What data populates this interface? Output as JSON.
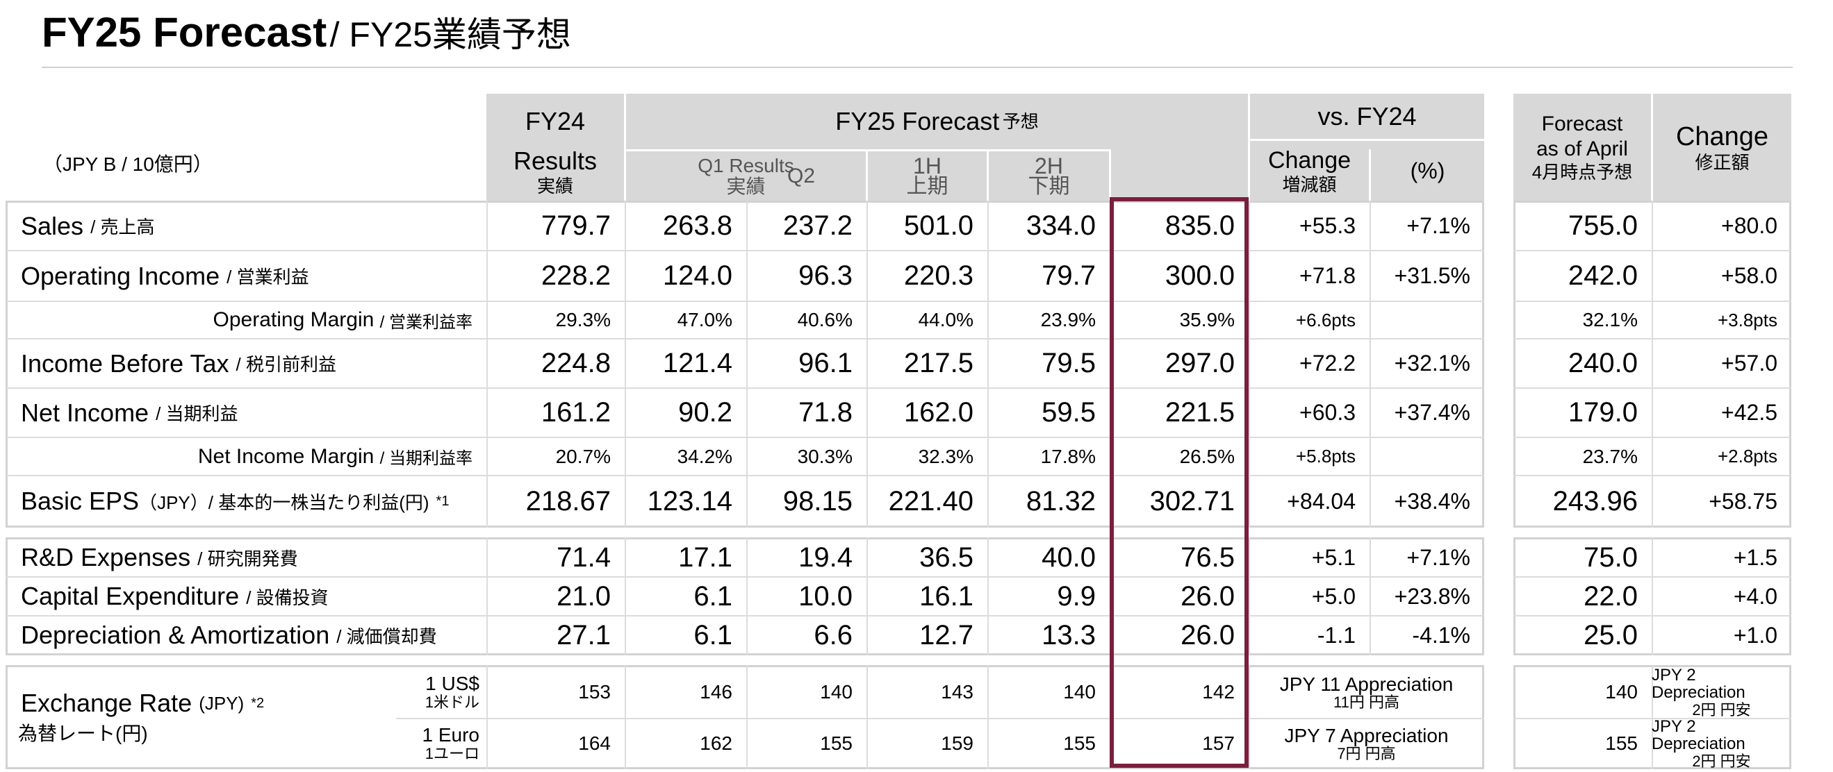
{
  "title": {
    "main": "FY25 Forecast",
    "sub": "/ FY25業績予想"
  },
  "unit_label": "（JPY B / 10億円）",
  "headers": {
    "fy24": "FY24",
    "fy24_results": "Results",
    "fy24_results_jp": "実績",
    "fy25_forecast": "FY25 Forecast",
    "fy25_forecast_jp": "予想",
    "q1_results": "Q1 Results",
    "q1_results_jp": "実績",
    "q2": "Q2",
    "h1": "1H",
    "h1_jp": "上期",
    "h2": "2H",
    "h2_jp": "下期",
    "vs_fy24": "vs. FY24",
    "change": "Change",
    "change_jp": "増減額",
    "percent": "(%)",
    "forecast_april": "Forecast",
    "forecast_april_2": "as of April",
    "forecast_april_jp": "4月時点予想",
    "revision": "Change",
    "revision_jp": "修正額"
  },
  "rows": [
    {
      "label": "Sales",
      "label_jp": "/ 売上高",
      "fy24": "779.7",
      "q1": "263.8",
      "q2": "237.2",
      "h1": "501.0",
      "h2": "334.0",
      "fy25": "835.0",
      "chg": "+55.3",
      "pct": "+7.1%",
      "apr": "755.0",
      "rev": "+80.0"
    },
    {
      "label": "Operating Income",
      "label_jp": "/ 営業利益",
      "fy24": "228.2",
      "q1": "124.0",
      "q2": "96.3",
      "h1": "220.3",
      "h2": "79.7",
      "fy25": "300.0",
      "chg": "+71.8",
      "pct": "+31.5%",
      "apr": "242.0",
      "rev": "+58.0"
    },
    {
      "label": "Operating Margin",
      "label_jp": "/ 営業利益率",
      "fy24": "29.3%",
      "q1": "47.0%",
      "q2": "40.6%",
      "h1": "44.0%",
      "h2": "23.9%",
      "fy25": "35.9%",
      "chg": "+6.6pts",
      "pct": "",
      "apr": "32.1%",
      "rev": "+3.8pts"
    },
    {
      "label": "Income Before Tax",
      "label_jp": "/ 税引前利益",
      "fy24": "224.8",
      "q1": "121.4",
      "q2": "96.1",
      "h1": "217.5",
      "h2": "79.5",
      "fy25": "297.0",
      "chg": "+72.2",
      "pct": "+32.1%",
      "apr": "240.0",
      "rev": "+57.0"
    },
    {
      "label": "Net Income",
      "label_jp": "/ 当期利益",
      "fy24": "161.2",
      "q1": "90.2",
      "q2": "71.8",
      "h1": "162.0",
      "h2": "59.5",
      "fy25": "221.5",
      "chg": "+60.3",
      "pct": "+37.4%",
      "apr": "179.0",
      "rev": "+42.5"
    },
    {
      "label": "Net Income Margin",
      "label_jp": "/ 当期利益率",
      "fy24": "20.7%",
      "q1": "34.2%",
      "q2": "30.3%",
      "h1": "32.3%",
      "h2": "17.8%",
      "fy25": "26.5%",
      "chg": "+5.8pts",
      "pct": "",
      "apr": "23.7%",
      "rev": "+2.8pts"
    },
    {
      "label": "Basic EPS",
      "label_unit": "（JPY）",
      "label_jp": "/ 基本的一株当たり利益(円)",
      "note": "*1",
      "fy24": "218.67",
      "q1": "123.14",
      "q2": "98.15",
      "h1": "221.40",
      "h2": "81.32",
      "fy25": "302.71",
      "chg": "+84.04",
      "pct": "+38.4%",
      "apr": "243.96",
      "rev": "+58.75"
    },
    {
      "label": "R&D Expenses",
      "label_jp": "/ 研究開発費",
      "fy24": "71.4",
      "q1": "17.1",
      "q2": "19.4",
      "h1": "36.5",
      "h2": "40.0",
      "fy25": "76.5",
      "chg": "+5.1",
      "pct": "+7.1%",
      "apr": "75.0",
      "rev": "+1.5"
    },
    {
      "label": "Capital Expenditure",
      "label_jp": "/ 設備投資",
      "fy24": "21.0",
      "q1": "6.1",
      "q2": "10.0",
      "h1": "16.1",
      "h2": "9.9",
      "fy25": "26.0",
      "chg": "+5.0",
      "pct": "+23.8%",
      "apr": "22.0",
      "rev": "+4.0"
    },
    {
      "label": "Depreciation & Amortization",
      "label_jp": "/ 減価償却費",
      "fy24": "27.1",
      "q1": "6.1",
      "q2": "6.6",
      "h1": "12.7",
      "h2": "13.3",
      "fy25": "26.0",
      "chg": "-1.1",
      "pct": "-4.1%",
      "apr": "25.0",
      "rev": "+1.0"
    }
  ],
  "exchange": {
    "label": "Exchange Rate",
    "label_unit": "(JPY)",
    "note": "*2",
    "label_jp": "為替レート(円)",
    "usd": {
      "name": "1 US$",
      "name_jp": "1米ドル",
      "fy24": "153",
      "q1": "146",
      "q2": "140",
      "h1": "143",
      "h2": "140",
      "fy25": "142",
      "vs": "JPY 11 Appreciation",
      "vs_jp": "11円 円高",
      "apr": "140",
      "rev": "JPY 2 Depreciation",
      "rev_jp": "2円 円安"
    },
    "eur": {
      "name": "1 Euro",
      "name_jp": "1ユーロ",
      "fy24": "164",
      "q1": "162",
      "q2": "155",
      "h1": "159",
      "h2": "155",
      "fy25": "157",
      "vs": "JPY 7 Appreciation",
      "vs_jp": "7円 円高",
      "apr": "155",
      "rev": "JPY 2 Depreciation",
      "rev_jp": "2円 円安"
    }
  },
  "colors": {
    "header_bg": "#d8d8d8",
    "highlight_border": "#7a1f3d",
    "grid": "#d2d2d2"
  }
}
